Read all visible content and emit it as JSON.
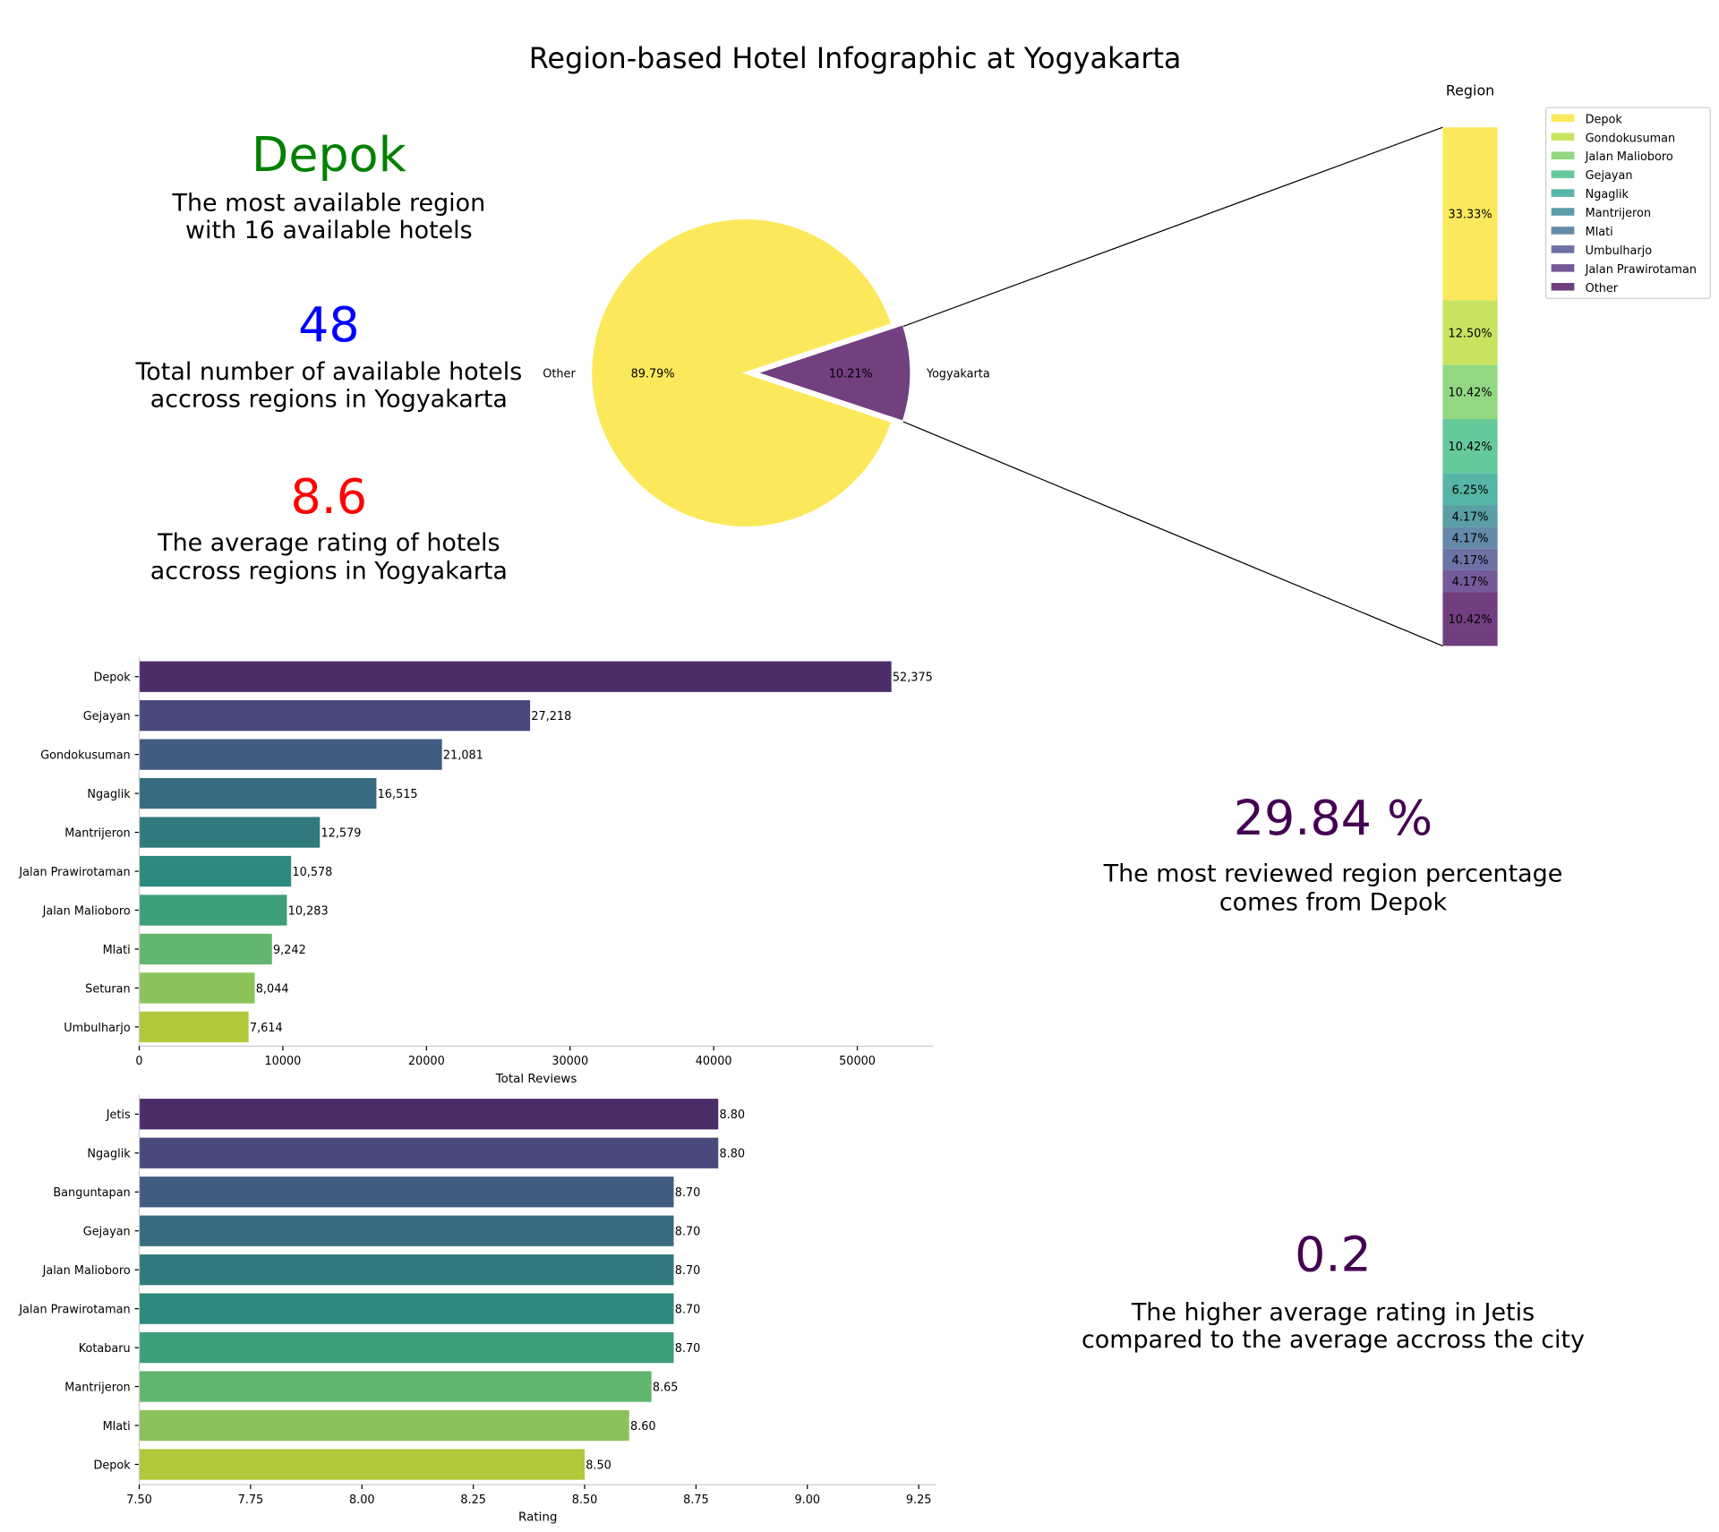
{
  "title": "Region-based Hotel Infographic at Yogyakarta",
  "kpis": [
    {
      "value": "Depok",
      "color": "#008000",
      "lines": [
        "The most available region",
        "with 16 available hotels"
      ]
    },
    {
      "value": "48",
      "color": "#0000ff",
      "lines": [
        "Total number of available hotels",
        "accross regions in Yogyakarta"
      ]
    },
    {
      "value": "8.6",
      "color": "#ff0000",
      "lines": [
        "The average rating of hotels",
        "accross regions in Yogyakarta"
      ]
    },
    {
      "value": "29.84 %",
      "color": "#440154",
      "lines": [
        "The most reviewed region percentage",
        "comes from Depok"
      ]
    },
    {
      "value": "0.2",
      "color": "#440154",
      "lines": [
        "The higher average rating in Jetis",
        "compared to the average accross the city"
      ]
    }
  ],
  "chart_data": [
    {
      "type": "pie",
      "labels": [
        "Other",
        "Yogyakarta"
      ],
      "values": [
        89.79,
        10.21
      ],
      "value_labels": [
        "89.79%",
        "10.21%"
      ],
      "colors": [
        "#fce95b",
        "#72407f"
      ],
      "exploded": "Yogyakarta"
    },
    {
      "type": "bar",
      "orientation": "stacked-vertical",
      "title": "Region",
      "categories": [
        "Depok",
        "Gondokusuman",
        "Jalan Malioboro",
        "Gejayan",
        "Ngaglik",
        "Mantrijeron",
        "Mlati",
        "Umbulharjo",
        "Jalan Prawirotaman",
        "Other"
      ],
      "values": [
        33.33,
        12.5,
        10.42,
        10.42,
        6.25,
        4.17,
        4.17,
        4.17,
        4.17,
        10.42
      ],
      "value_labels": [
        "33.33%",
        "12.50%",
        "10.42%",
        "10.42%",
        "6.25%",
        "4.17%",
        "4.17%",
        "4.17%",
        "4.17%",
        "10.42%"
      ],
      "colors": [
        "#fce95b",
        "#c8e35f",
        "#92d882",
        "#66c99a",
        "#56b5a6",
        "#5b9ea6",
        "#6589a8",
        "#6c72a4",
        "#755a9a",
        "#713f80"
      ],
      "legend": "top-right"
    },
    {
      "type": "bar",
      "orientation": "horizontal",
      "xlabel": "Total Reviews",
      "categories": [
        "Depok",
        "Gejayan",
        "Gondokusuman",
        "Ngaglik",
        "Mantrijeron",
        "Jalan Prawirotaman",
        "Jalan Malioboro",
        "Mlati",
        "Seturan",
        "Umbulharjo"
      ],
      "values": [
        52375,
        27218,
        21081,
        16515,
        12579,
        10578,
        10283,
        9242,
        8044,
        7614
      ],
      "value_labels": [
        "52,375",
        "27,218",
        "21,081",
        "16,515",
        "12,579",
        "10,578",
        "10,283",
        "9,242",
        "8,044",
        "7,614"
      ],
      "colors": [
        "#4b2d68",
        "#484a7c",
        "#425b80",
        "#386b80",
        "#317b7e",
        "#2e8a7e",
        "#3c9f79",
        "#62b56e",
        "#8bc35a",
        "#b0c83a"
      ],
      "xlim": [
        0,
        55000
      ],
      "xticks": [
        "0",
        "10000",
        "20000",
        "30000",
        "40000",
        "50000"
      ],
      "xtick_values": [
        0,
        10000,
        20000,
        30000,
        40000,
        50000
      ]
    },
    {
      "type": "bar",
      "orientation": "horizontal",
      "xlabel": "Rating",
      "categories": [
        "Jetis",
        "Ngaglik",
        "Banguntapan",
        "Gejayan",
        "Jalan Malioboro",
        "Jalan Prawirotaman",
        "Kotabaru",
        "Mantrijeron",
        "Mlati",
        "Depok"
      ],
      "values": [
        8.8,
        8.8,
        8.7,
        8.7,
        8.7,
        8.7,
        8.7,
        8.65,
        8.6,
        8.5
      ],
      "value_labels": [
        "8.80",
        "8.80",
        "8.70",
        "8.70",
        "8.70",
        "8.70",
        "8.70",
        "8.65",
        "8.60",
        "8.50"
      ],
      "colors": [
        "#4b2d68",
        "#484a7c",
        "#425b80",
        "#386b80",
        "#317b7e",
        "#2e8a7e",
        "#3c9f79",
        "#62b56e",
        "#8bc35a",
        "#b0c83a"
      ],
      "xlim": [
        7.5,
        9.28
      ],
      "xticks": [
        "7.50",
        "7.75",
        "8.00",
        "8.25",
        "8.50",
        "8.75",
        "9.00",
        "9.25"
      ],
      "xtick_values": [
        7.5,
        7.75,
        8.0,
        8.25,
        8.5,
        8.75,
        9.0,
        9.25
      ]
    }
  ]
}
